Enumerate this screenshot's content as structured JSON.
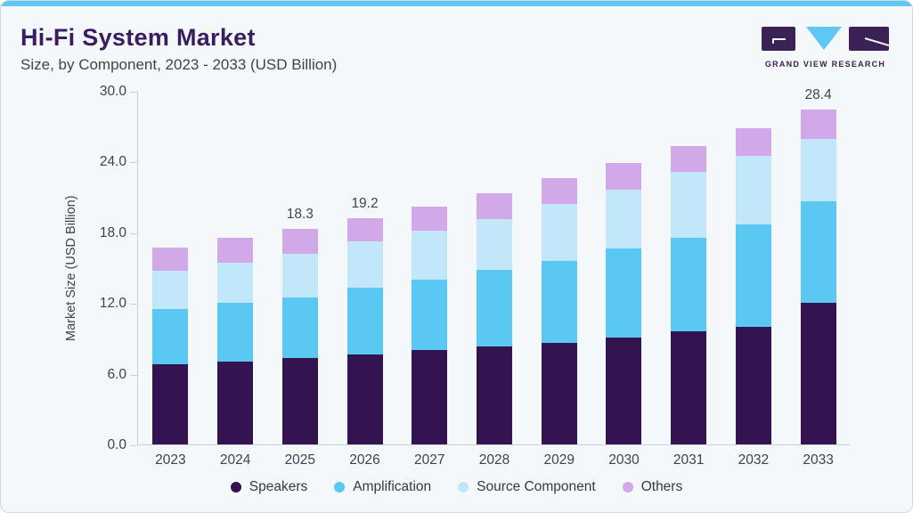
{
  "header": {
    "title": "Hi-Fi System Market",
    "subtitle": "Size, by Component, 2023 - 2033 (USD Billion)",
    "logo_text": "GRAND VIEW RESEARCH"
  },
  "colors": {
    "accent_strip": "#5cc8f3",
    "title_text": "#3a1c61",
    "subtitle_text": "#3f444c",
    "card_bg": "#f4f8fb",
    "card_border": "#d3d9df",
    "axis_line": "#c9d2db",
    "axis_text": "#3d434e",
    "bar_label_text": "#3f444c",
    "logo_dark": "#3a2257",
    "logo_blue": "#5cc8f3"
  },
  "chart_data": {
    "type": "bar",
    "stacked": true,
    "title": "Hi-Fi System Market Size, by Component, 2023 - 2033 (USD Billion)",
    "xlabel": "",
    "ylabel": "Market Size (USD Billion)",
    "ylim": [
      0,
      30
    ],
    "yticks": [
      0,
      6,
      12,
      18,
      24,
      30
    ],
    "ytick_labels": [
      "0.0",
      "6.0",
      "12.0",
      "18.0",
      "24.0",
      "30.0"
    ],
    "grid": false,
    "legend_position": "bottom",
    "categories": [
      "2023",
      "2024",
      "2025",
      "2026",
      "2027",
      "2028",
      "2029",
      "2030",
      "2031",
      "2032",
      "2033"
    ],
    "series": [
      {
        "name": "Speakers",
        "color": "#331450",
        "values": [
          6.8,
          7.0,
          7.3,
          7.6,
          8.0,
          8.3,
          8.6,
          9.1,
          9.6,
          10.0,
          12.0
        ]
      },
      {
        "name": "Amplification",
        "color": "#5bc7f3",
        "values": [
          4.7,
          5.0,
          5.2,
          5.7,
          6.0,
          6.5,
          7.0,
          7.5,
          7.9,
          8.7,
          8.6
        ]
      },
      {
        "name": "Source Component",
        "color": "#c2e7fa",
        "values": [
          3.2,
          3.4,
          3.7,
          3.9,
          4.1,
          4.3,
          4.8,
          5.0,
          5.6,
          5.8,
          5.3
        ]
      },
      {
        "name": "Others",
        "color": "#d2a9e8",
        "values": [
          2.0,
          2.1,
          2.1,
          2.0,
          2.1,
          2.2,
          2.2,
          2.3,
          2.2,
          2.3,
          2.5
        ]
      }
    ],
    "totals": [
      16.7,
      17.5,
      18.3,
      19.2,
      20.2,
      21.3,
      22.6,
      23.9,
      25.3,
      26.8,
      28.4
    ],
    "bar_labels": [
      null,
      null,
      "18.3",
      "19.2",
      null,
      null,
      null,
      null,
      null,
      null,
      "28.4"
    ]
  }
}
